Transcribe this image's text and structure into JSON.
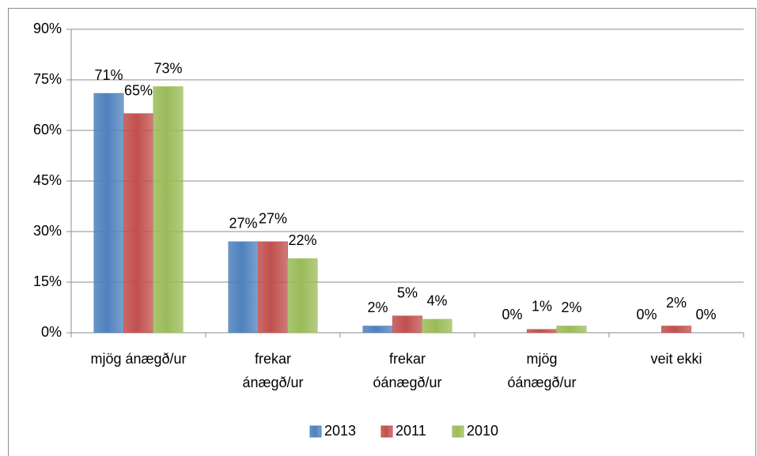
{
  "chart_data": {
    "type": "bar",
    "categories": [
      "mjög ánægð/ur",
      "frekar ánægð/ur",
      "frekar óánægð/ur",
      "mjög óánægð/ur",
      "veit ekki"
    ],
    "series": [
      {
        "name": "2013",
        "color": "#4f81bd",
        "values": [
          71,
          27,
          2,
          0,
          0
        ],
        "value_labels": [
          "71%",
          "27%",
          "2%",
          "0%",
          "0%"
        ]
      },
      {
        "name": "2011",
        "color": "#c0504d",
        "values": [
          65,
          27,
          5,
          1,
          2
        ],
        "value_labels": [
          "65%",
          "27%",
          "5%",
          "1%",
          "2%"
        ]
      },
      {
        "name": "2010",
        "color": "#9bbb59",
        "values": [
          73,
          22,
          4,
          2,
          0
        ],
        "value_labels": [
          "73%",
          "22%",
          "4%",
          "2%",
          "0%"
        ]
      }
    ],
    "ylim": [
      0,
      90
    ],
    "yticks": [
      {
        "value": 0,
        "label": "0%"
      },
      {
        "value": 15,
        "label": "15%"
      },
      {
        "value": 30,
        "label": "30%"
      },
      {
        "value": 45,
        "label": "45%"
      },
      {
        "value": 60,
        "label": "60%"
      },
      {
        "value": 75,
        "label": "75%"
      },
      {
        "value": 90,
        "label": "90%"
      }
    ],
    "grid": true,
    "legend": "bottom"
  }
}
